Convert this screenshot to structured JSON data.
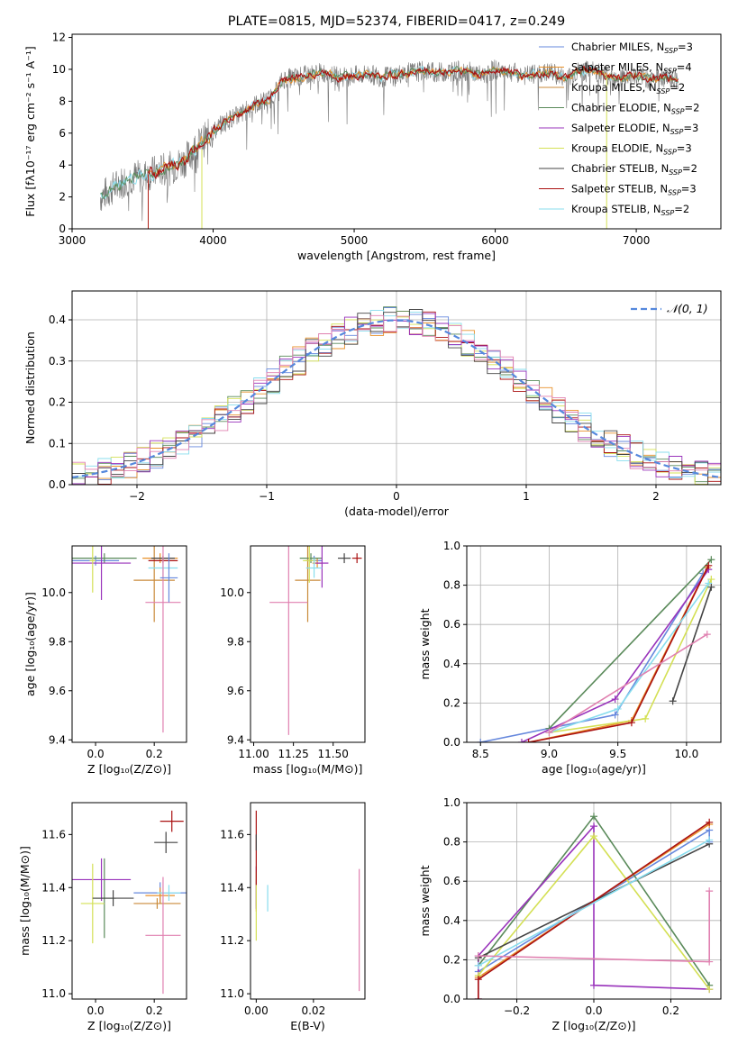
{
  "colors": {
    "chabrier_miles": "#6688dd",
    "salpeter_miles": "#e8912a",
    "kroupa_miles": "#c98a3a",
    "chabrier_elodie": "#5a8a5a",
    "salpeter_elodie": "#9933bb",
    "kroupa_elodie": "#d4e055",
    "chabrier_stelib": "#444444",
    "salpeter_stelib": "#aa1111",
    "kroupa_stelib": "#88ddee",
    "pink": "#e080b0",
    "gaussian": "#5588dd",
    "data_spectrum": "#777777"
  },
  "chart_data": [
    {
      "id": "spectrum",
      "type": "line",
      "title": "PLATE=0815, MJD=52374, FIBERID=0417, z=0.249",
      "xlabel": "wavelength [Angstrom, rest frame]",
      "ylabel": "Flux [fλ10⁻¹⁷ erg cm⁻² s⁻¹ A⁻¹]",
      "xlim": [
        3000,
        7600
      ],
      "ylim": [
        0,
        12.2
      ],
      "xticks": [
        "3000",
        "4000",
        "5000",
        "6000",
        "7000"
      ],
      "yticks": [
        "0",
        "2",
        "4",
        "6",
        "8",
        "10",
        "12"
      ],
      "legend_position": "right",
      "legend": [
        {
          "label": "Chabrier MILES, N",
          "sub": "SSP",
          "suffix": "=3",
          "color": "#6688dd"
        },
        {
          "label": "Salpeter MILES, N",
          "sub": "SSP",
          "suffix": "=4",
          "color": "#e8912a"
        },
        {
          "label": "Kroupa MILES, N",
          "sub": "SSP",
          "suffix": "=2",
          "color": "#c98a3a"
        },
        {
          "label": "Chabrier ELODIE, N",
          "sub": "SSP",
          "suffix": "=2",
          "color": "#5a8a5a"
        },
        {
          "label": "Salpeter ELODIE, N",
          "sub": "SSP",
          "suffix": "=3",
          "color": "#9933bb"
        },
        {
          "label": "Kroupa ELODIE, N",
          "sub": "SSP",
          "suffix": "=3",
          "color": "#d4e055"
        },
        {
          "label": "Chabrier STELIB, N",
          "sub": "SSP",
          "suffix": "=2",
          "color": "#444444"
        },
        {
          "label": "Salpeter STELIB, N",
          "sub": "SSP",
          "suffix": "=3",
          "color": "#aa1111"
        },
        {
          "label": "Kroupa STELIB, N",
          "sub": "SSP",
          "suffix": "=2",
          "color": "#88ddee"
        }
      ],
      "data_x": [
        3200,
        3300,
        3400,
        3500,
        3600,
        3700,
        3800,
        3900,
        4000,
        4100,
        4200,
        4300,
        4400,
        4500,
        4600,
        4700,
        4800,
        4900,
        5000,
        5100,
        5200,
        5300,
        5400,
        5500,
        5600,
        5700,
        5800,
        5900,
        6000,
        6100,
        6200,
        6300,
        6400,
        6500,
        6600,
        6700,
        6800,
        6900,
        7000,
        7100,
        7200,
        7300
      ],
      "data_y": [
        2.0,
        2.6,
        3.2,
        3.3,
        3.6,
        3.8,
        4.3,
        5.3,
        6.1,
        6.8,
        7.2,
        7.8,
        8.1,
        9.4,
        9.5,
        9.7,
        9.8,
        9.5,
        9.6,
        9.7,
        9.5,
        9.7,
        9.8,
        9.9,
        9.8,
        9.9,
        9.9,
        9.6,
        10.0,
        9.9,
        9.6,
        9.7,
        9.8,
        9.4,
        9.9,
        9.9,
        9.6,
        9.5,
        9.6,
        9.4,
        9.5,
        9.4
      ]
    },
    {
      "id": "residuals",
      "type": "line",
      "xlabel": "(data-model)/error",
      "ylabel": "Normed distribution",
      "xlim": [
        -2.5,
        2.5
      ],
      "ylim": [
        0,
        0.47
      ],
      "xticks": [
        "−2",
        "−1",
        "0",
        "1",
        "2"
      ],
      "yticks": [
        "0.0",
        "0.1",
        "0.2",
        "0.3",
        "0.4"
      ],
      "grid": true,
      "legend_position": "top-right",
      "gaussian_label": "𝒩(0, 1)"
    },
    {
      "id": "age_vs_Z",
      "type": "scatter",
      "xlabel": "Z [log₁₀(Z/Z⊙)]",
      "ylabel": "age  [log₁₀(age/yr)]",
      "xlim": [
        -0.08,
        0.31
      ],
      "ylim": [
        9.39,
        10.19
      ],
      "xticks": [
        "0.0",
        "0.2"
      ],
      "yticks": [
        "9.4",
        "9.6",
        "9.8",
        "10.0"
      ],
      "points": [
        {
          "x": 0.0,
          "y": 10.13,
          "xerr": 0.08,
          "yerr": 0.02,
          "color": "#6688dd"
        },
        {
          "x": 0.22,
          "y": 10.14,
          "xerr": 0.06,
          "yerr": 0.02,
          "color": "#e8912a"
        },
        {
          "x": 0.2,
          "y": 10.05,
          "xerr": 0.07,
          "yerr": 0.17,
          "color": "#c98a3a"
        },
        {
          "x": 0.03,
          "y": 10.14,
          "xerr": 0.11,
          "yerr": 0.02,
          "color": "#5a8a5a"
        },
        {
          "x": 0.02,
          "y": 10.12,
          "xerr": 0.1,
          "yerr": 0.15,
          "color": "#9933bb"
        },
        {
          "x": -0.01,
          "y": 10.13,
          "xerr": 0.01,
          "yerr": 0.13,
          "color": "#d4e055"
        },
        {
          "x": 0.23,
          "y": 10.14,
          "xerr": 0.04,
          "yerr": 0.01,
          "color": "#444444"
        },
        {
          "x": 0.23,
          "y": 10.13,
          "xerr": 0.05,
          "yerr": 0.01,
          "color": "#aa1111"
        },
        {
          "x": 0.23,
          "y": 10.1,
          "xerr": 0.05,
          "yerr": 0.04,
          "color": "#88ddee"
        },
        {
          "x": 0.23,
          "y": 9.96,
          "xerr": 0.06,
          "yerr": 0.53,
          "color": "#e080b0"
        },
        {
          "x": 0.25,
          "y": 10.06,
          "xerr": 0.03,
          "yerr": 0.1,
          "color": "#6688dd"
        }
      ]
    },
    {
      "id": "age_vs_mass",
      "type": "scatter",
      "xlabel": "mass [log₁₀(M/M⊙)]",
      "xlim": [
        10.98,
        11.7
      ],
      "ylim": [
        9.39,
        10.19
      ],
      "xticks": [
        "11.00",
        "11.25",
        "11.50"
      ],
      "yticks": [
        "9.4",
        "9.6",
        "9.8",
        "10.0"
      ],
      "points": [
        {
          "x": 11.38,
          "y": 10.13,
          "xerr": 0.05,
          "yerr": 0.02,
          "color": "#6688dd"
        },
        {
          "x": 11.4,
          "y": 10.12,
          "xerr": 0.03,
          "yerr": 0.02,
          "color": "#e8912a"
        },
        {
          "x": 11.34,
          "y": 10.05,
          "xerr": 0.08,
          "yerr": 0.17,
          "color": "#c98a3a"
        },
        {
          "x": 11.36,
          "y": 10.14,
          "xerr": 0.07,
          "yerr": 0.02,
          "color": "#5a8a5a"
        },
        {
          "x": 11.43,
          "y": 10.12,
          "xerr": 0.04,
          "yerr": 0.1,
          "color": "#9933bb"
        },
        {
          "x": 11.35,
          "y": 10.13,
          "xerr": 0.04,
          "yerr": 0.09,
          "color": "#d4e055"
        },
        {
          "x": 11.57,
          "y": 10.14,
          "xerr": 0.04,
          "yerr": 0.02,
          "color": "#444444"
        },
        {
          "x": 11.65,
          "y": 10.14,
          "xerr": 0.03,
          "yerr": 0.02,
          "color": "#aa1111"
        },
        {
          "x": 11.38,
          "y": 10.1,
          "xerr": 0.05,
          "yerr": 0.04,
          "color": "#88ddee"
        },
        {
          "x": 11.22,
          "y": 9.96,
          "xerr": 0.12,
          "yerr": 0.54,
          "color": "#e080b0"
        }
      ]
    },
    {
      "id": "massweight_vs_age",
      "type": "line",
      "xlabel": "age  [log₁₀(age/yr)]",
      "ylabel": "mass weight",
      "xlim": [
        8.4,
        10.25
      ],
      "ylim": [
        0,
        1.0
      ],
      "xticks": [
        "8.5",
        "9.0",
        "9.5",
        "10.0"
      ],
      "yticks": [
        "0.0",
        "0.2",
        "0.4",
        "0.6",
        "0.8",
        "1.0"
      ],
      "grid": true,
      "series": [
        {
          "color": "#6688dd",
          "x": [
            8.5,
            9.48,
            10.12
          ],
          "y": [
            0.0,
            0.14,
            0.86
          ]
        },
        {
          "color": "#e8912a",
          "x": [
            8.85,
            9.6,
            10.15
          ],
          "y": [
            0.0,
            0.11,
            0.89
          ]
        },
        {
          "color": "#5a8a5a",
          "x": [
            9.0,
            10.18
          ],
          "y": [
            0.07,
            0.93
          ]
        },
        {
          "color": "#9933bb",
          "x": [
            8.8,
            9.48,
            10.16
          ],
          "y": [
            0.0,
            0.22,
            0.88
          ]
        },
        {
          "color": "#d4e055",
          "x": [
            9.0,
            9.7,
            10.18
          ],
          "y": [
            0.05,
            0.12,
            0.83
          ]
        },
        {
          "color": "#444444",
          "x": [
            9.9,
            10.18
          ],
          "y": [
            0.21,
            0.79
          ]
        },
        {
          "color": "#aa1111",
          "x": [
            8.85,
            9.6,
            10.16
          ],
          "y": [
            0.0,
            0.1,
            0.9
          ]
        },
        {
          "color": "#88ddee",
          "x": [
            9.0,
            9.5,
            10.16
          ],
          "y": [
            0.05,
            0.17,
            0.81
          ]
        },
        {
          "color": "#e080b0",
          "x": [
            9.0,
            10.15
          ],
          "y": [
            0.05,
            0.55
          ]
        }
      ]
    },
    {
      "id": "mass_vs_Z",
      "type": "scatter",
      "xlabel": "Z [log₁₀(Z/Z⊙)]",
      "ylabel": "mass [log₁₀(M/M⊙)]",
      "xlim": [
        -0.08,
        0.31
      ],
      "ylim": [
        10.98,
        11.72
      ],
      "xticks": [
        "0.0",
        "0.2"
      ],
      "yticks": [
        "11.0",
        "11.2",
        "11.4",
        "11.6"
      ],
      "points": [
        {
          "x": 0.22,
          "y": 11.38,
          "xerr": 0.09,
          "yerr": 0.04,
          "color": "#6688dd"
        },
        {
          "x": 0.22,
          "y": 11.37,
          "xerr": 0.05,
          "yerr": 0.03,
          "color": "#e8912a"
        },
        {
          "x": 0.21,
          "y": 11.34,
          "xerr": 0.08,
          "yerr": 0.02,
          "color": "#c98a3a"
        },
        {
          "x": 0.03,
          "y": 11.36,
          "xerr": 0.04,
          "yerr": 0.15,
          "color": "#5a8a5a"
        },
        {
          "x": 0.02,
          "y": 11.43,
          "xerr": 0.1,
          "yerr": 0.08,
          "color": "#9933bb"
        },
        {
          "x": -0.01,
          "y": 11.34,
          "xerr": 0.04,
          "yerr": 0.15,
          "color": "#d4e055"
        },
        {
          "x": 0.24,
          "y": 11.57,
          "xerr": 0.04,
          "yerr": 0.04,
          "color": "#444444"
        },
        {
          "x": 0.26,
          "y": 11.65,
          "xerr": 0.04,
          "yerr": 0.04,
          "color": "#aa1111"
        },
        {
          "x": 0.25,
          "y": 11.38,
          "xerr": 0.04,
          "yerr": 0.03,
          "color": "#88ddee"
        },
        {
          "x": 0.23,
          "y": 11.22,
          "xerr": 0.06,
          "yerr": 0.22,
          "color": "#e080b0"
        },
        {
          "x": 0.06,
          "y": 11.36,
          "xerr": 0.07,
          "yerr": 0.03,
          "color": "#444444"
        }
      ]
    },
    {
      "id": "mass_vs_EBV",
      "type": "scatter",
      "xlabel": "E(B-V)",
      "xlim": [
        -0.002,
        0.038
      ],
      "ylim": [
        10.98,
        11.72
      ],
      "xticks": [
        "0.00",
        "0.02"
      ],
      "yticks": [
        "11.0",
        "11.2",
        "11.4",
        "11.6"
      ],
      "points": [
        {
          "x": 0.0,
          "y": 11.38,
          "xerr": 0.0,
          "yerr": 0.05,
          "color": "#6688dd"
        },
        {
          "x": 0.0,
          "y": 11.36,
          "xerr": 0.0,
          "yerr": 0.05,
          "color": "#e8912a"
        },
        {
          "x": 0.0,
          "y": 11.4,
          "xerr": 0.0,
          "yerr": 0.08,
          "color": "#9933bb"
        },
        {
          "x": 0.0,
          "y": 11.33,
          "xerr": 0.0,
          "yerr": 0.13,
          "color": "#d4e055"
        },
        {
          "x": 0.0,
          "y": 11.55,
          "xerr": 0.0,
          "yerr": 0.14,
          "color": "#aa1111"
        },
        {
          "x": 0.0,
          "y": 11.57,
          "xerr": 0.0,
          "yerr": 0.03,
          "color": "#444444"
        },
        {
          "x": 0.004,
          "y": 11.36,
          "xerr": 0.0,
          "yerr": 0.05,
          "color": "#88ddee"
        },
        {
          "x": 0.036,
          "y": 11.24,
          "xerr": 0.0,
          "yerr": 0.23,
          "color": "#e080b0"
        }
      ]
    },
    {
      "id": "massweight_vs_Z",
      "type": "line",
      "xlabel": "Z [log₁₀(Z/Z⊙)]",
      "ylabel": "mass weight",
      "xlim": [
        -0.33,
        0.33
      ],
      "ylim": [
        0,
        1.0
      ],
      "xticks": [
        "−0.2",
        "0.0",
        "0.2"
      ],
      "yticks": [
        "0.0",
        "0.2",
        "0.4",
        "0.6",
        "0.8",
        "1.0"
      ],
      "grid": true,
      "series": [
        {
          "color": "#6688dd",
          "x": [
            -0.3,
            0.3,
            0.3
          ],
          "y": [
            0.14,
            0.86,
            0.8
          ]
        },
        {
          "color": "#e8912a",
          "x": [
            -0.3,
            0.3
          ],
          "y": [
            0.11,
            0.89
          ]
        },
        {
          "color": "#5a8a5a",
          "x": [
            -0.3,
            0.0,
            0.3
          ],
          "y": [
            0.17,
            0.93,
            0.07
          ]
        },
        {
          "color": "#9933bb",
          "x": [
            -0.3,
            -0.3,
            0.0,
            0.0,
            0.3
          ],
          "y": [
            0.0,
            0.22,
            0.88,
            0.07,
            0.05
          ]
        },
        {
          "color": "#d4e055",
          "x": [
            -0.3,
            0.0,
            0.3
          ],
          "y": [
            0.12,
            0.83,
            0.05
          ]
        },
        {
          "color": "#444444",
          "x": [
            -0.3,
            0.3
          ],
          "y": [
            0.21,
            0.79
          ]
        },
        {
          "color": "#aa1111",
          "x": [
            -0.3,
            -0.3,
            0.3
          ],
          "y": [
            0.0,
            0.1,
            0.9
          ]
        },
        {
          "color": "#88ddee",
          "x": [
            -0.3,
            0.3
          ],
          "y": [
            0.17,
            0.81
          ]
        },
        {
          "color": "#e080b0",
          "x": [
            -0.3,
            0.3,
            0.3
          ],
          "y": [
            0.22,
            0.19,
            0.55
          ]
        }
      ]
    }
  ]
}
